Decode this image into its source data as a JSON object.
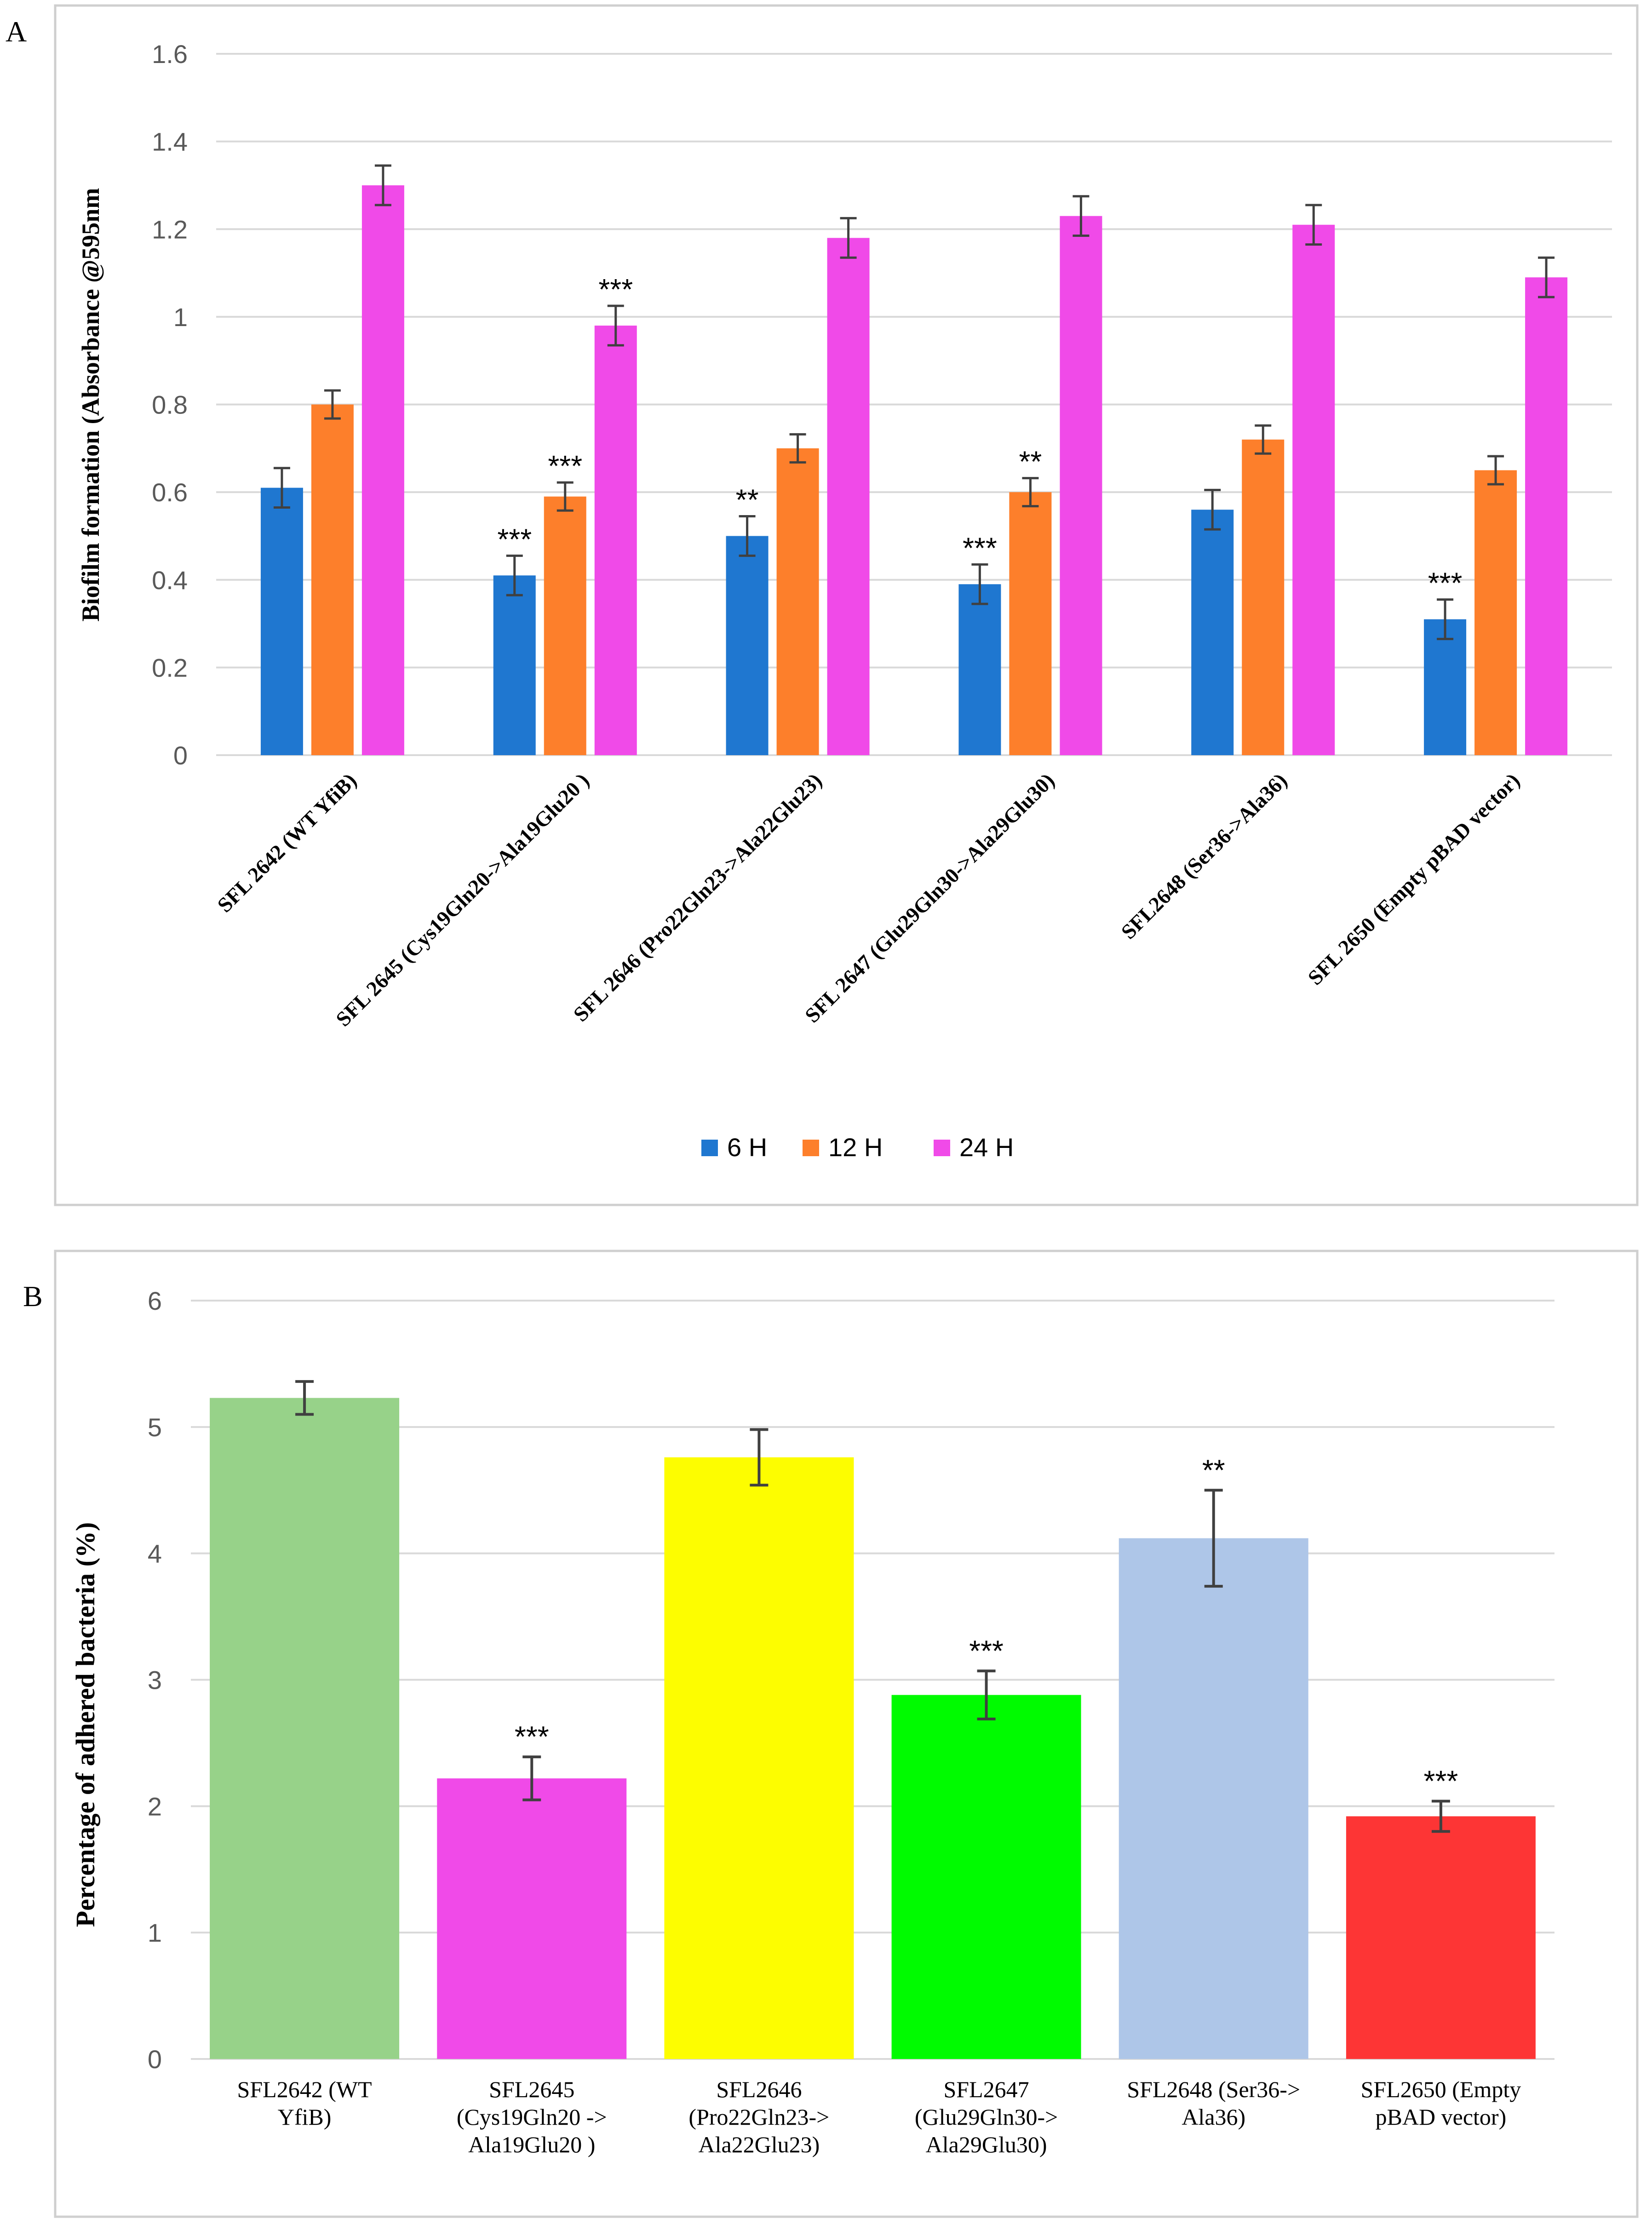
{
  "chart_data": [
    {
      "panel_label": "A",
      "type": "bar",
      "ylabel": "Biofilm formation (Absorbance @595nm",
      "xlabel": "",
      "ylim": [
        0,
        1.6
      ],
      "yticks": [
        "0",
        "0.2",
        "0.4",
        "0.6",
        "0.8",
        "1",
        "1.2",
        "1.4",
        "1.6"
      ],
      "grid": true,
      "legend_position": "bottom",
      "categories": [
        "SFL 2642 (WT YfiB)",
        "SFL 2645 (Cys19Gln20->Ala19Glu20 )",
        "SFL 2646 (Pro22Gln23->Ala22Glu23)",
        "SFL 2647 (Glu29Gln30->Ala29Glu30)",
        "SFL2648 (Ser36->Ala36)",
        "SFL 2650 (Empty pBAD vector)"
      ],
      "series": [
        {
          "name": "6 H",
          "color": "#1f77d0",
          "values": [
            0.61,
            0.41,
            0.5,
            0.39,
            0.56,
            0.31
          ],
          "errors": [
            0.045,
            0.045,
            0.045,
            0.045,
            0.045,
            0.045
          ],
          "annotations": [
            "",
            "***",
            "**",
            "***",
            "",
            "***"
          ]
        },
        {
          "name": "12 H",
          "color": "#fd7f2b",
          "values": [
            0.8,
            0.59,
            0.7,
            0.6,
            0.72,
            0.65
          ],
          "errors": [
            0.032,
            0.032,
            0.032,
            0.032,
            0.032,
            0.032
          ],
          "annotations": [
            "",
            "***",
            "",
            "**",
            "",
            ""
          ]
        },
        {
          "name": "24 H",
          "color": "#f04ae8",
          "values": [
            1.3,
            0.98,
            1.18,
            1.23,
            1.21,
            1.09
          ],
          "errors": [
            0.045,
            0.045,
            0.045,
            0.045,
            0.045,
            0.045
          ],
          "annotations": [
            "",
            "***",
            "",
            "",
            "",
            ""
          ]
        }
      ]
    },
    {
      "panel_label": "B",
      "type": "bar",
      "ylabel": "Percentage of adhered bacteria (%)",
      "xlabel": "",
      "ylim": [
        0,
        6
      ],
      "yticks": [
        "0",
        "1",
        "2",
        "3",
        "4",
        "5",
        "6"
      ],
      "grid": true,
      "categories": [
        [
          "SFL2642 (WT",
          "YfiB)"
        ],
        [
          "SFL2645",
          "(Cys19Gln20 ->",
          "Ala19Glu20 )"
        ],
        [
          "SFL2646",
          "(Pro22Gln23->",
          "Ala22Glu23)"
        ],
        [
          "SFL2647",
          "(Glu29Gln30->",
          "Ala29Glu30)"
        ],
        [
          "SFL2648 (Ser36->",
          "Ala36)"
        ],
        [
          "SFL2650 (Empty",
          "pBAD vector)"
        ]
      ],
      "values": [
        5.23,
        2.22,
        4.76,
        2.88,
        4.12,
        1.92
      ],
      "errors": [
        0.13,
        0.17,
        0.22,
        0.19,
        0.38,
        0.12
      ],
      "colors": [
        "#97d289",
        "#f04ae8",
        "#fdfd00",
        "#00fb00",
        "#aec6e8",
        "#fd3535"
      ],
      "annotations": [
        "",
        "***",
        "",
        "***",
        "**",
        "***"
      ]
    }
  ]
}
